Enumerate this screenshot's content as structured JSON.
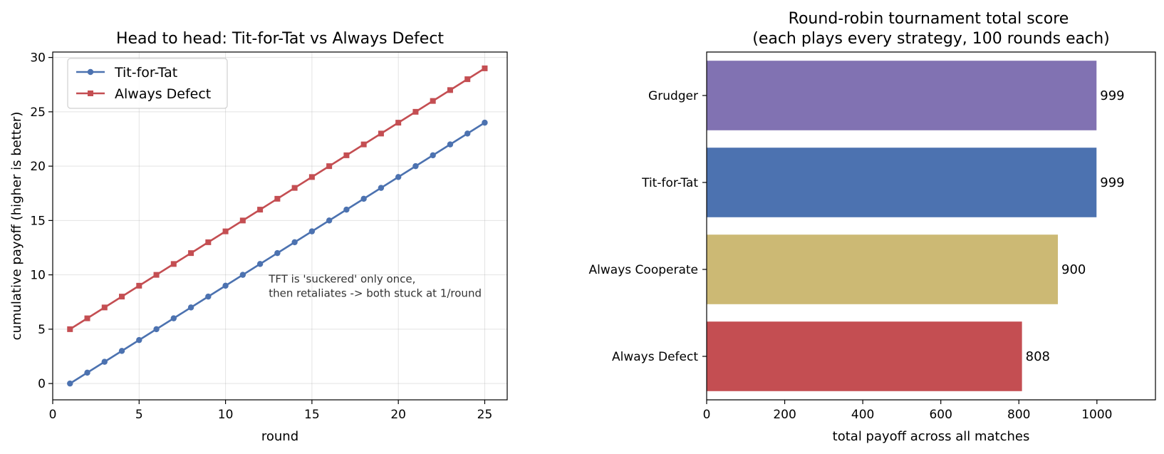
{
  "chart_data": [
    {
      "type": "line",
      "title": "Head to head: Tit-for-Tat vs Always Defect",
      "xlabel": "round",
      "ylabel": "cumulative payoff (higher is better)",
      "xlim": [
        0,
        26.3
      ],
      "ylim": [
        -1.5,
        30.5
      ],
      "xticks": [
        0,
        5,
        10,
        15,
        20,
        25
      ],
      "yticks": [
        0,
        5,
        10,
        15,
        20,
        25,
        30
      ],
      "grid": true,
      "legend_position": "top-left",
      "annotation": [
        "TFT is 'suckered' only once,",
        "then retaliates -> both stuck at 1/round"
      ],
      "annotation_at": [
        12.5,
        9.5
      ],
      "x": [
        1,
        2,
        3,
        4,
        5,
        6,
        7,
        8,
        9,
        10,
        11,
        12,
        13,
        14,
        15,
        16,
        17,
        18,
        19,
        20,
        21,
        22,
        23,
        24,
        25
      ],
      "series": [
        {
          "name": "Tit-for-Tat",
          "color": "#4c72b0",
          "marker": "circle",
          "values": [
            0,
            1,
            2,
            3,
            4,
            5,
            6,
            7,
            8,
            9,
            10,
            11,
            12,
            13,
            14,
            15,
            16,
            17,
            18,
            19,
            20,
            21,
            22,
            23,
            24
          ]
        },
        {
          "name": "Always Defect",
          "color": "#c44e52",
          "marker": "square",
          "values": [
            5,
            6,
            7,
            8,
            9,
            10,
            11,
            12,
            13,
            14,
            15,
            16,
            17,
            18,
            19,
            20,
            21,
            22,
            23,
            24,
            25,
            26,
            27,
            28,
            29
          ]
        }
      ]
    },
    {
      "type": "bar",
      "orientation": "horizontal",
      "title": [
        "Round-robin tournament total score",
        "(each plays every strategy, 100 rounds each)"
      ],
      "xlabel": "total payoff across all matches",
      "ylabel": "",
      "xlim": [
        0,
        1150
      ],
      "xticks": [
        0,
        200,
        400,
        600,
        800,
        1000
      ],
      "grid": false,
      "categories": [
        "Grudger",
        "Tit-for-Tat",
        "Always Cooperate",
        "Always Defect"
      ],
      "values": [
        999,
        999,
        900,
        808
      ],
      "colors": [
        "#8172b2",
        "#4c72b0",
        "#ccb974",
        "#c44e52"
      ]
    }
  ]
}
